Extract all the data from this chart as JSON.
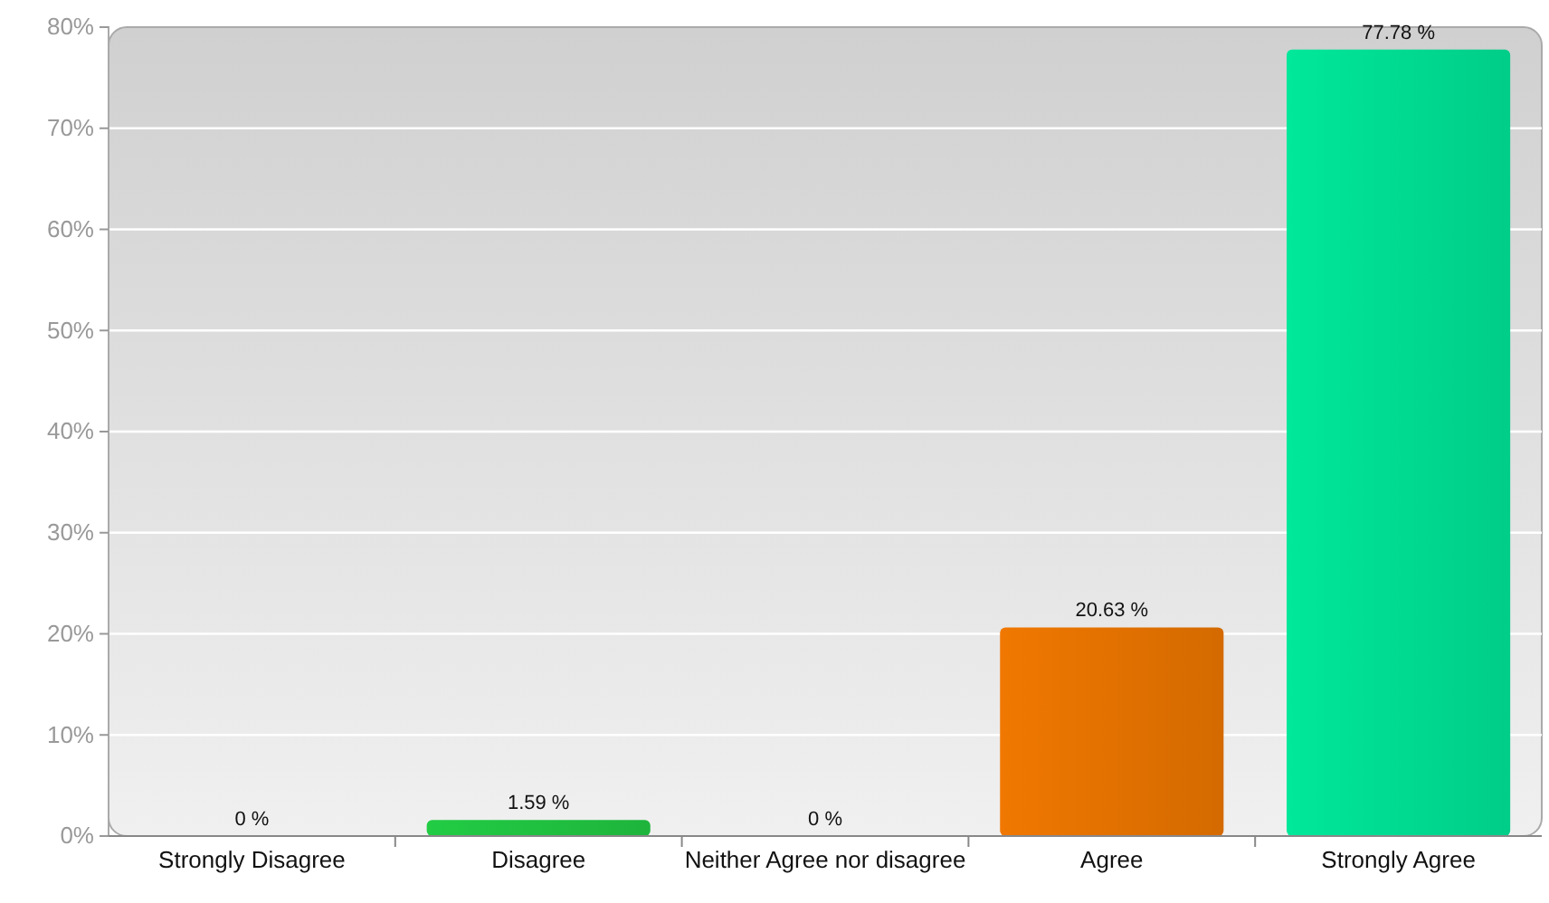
{
  "chart_data": {
    "type": "bar",
    "categories": [
      "Strongly Disagree",
      "Disagree",
      "Neither Agree nor disagree",
      "Agree",
      "Strongly Agree"
    ],
    "values": [
      0,
      1.59,
      0,
      20.63,
      77.78
    ],
    "colors": [
      "#cc3333",
      "#22cc44",
      "#ffcc00",
      "#f07800",
      "#00e89a"
    ],
    "value_labels": [
      "0 %",
      "1.59 %",
      "0 %",
      "20.63 %",
      "77.78 %"
    ],
    "ylim": [
      0,
      80
    ],
    "yticks": [
      {
        "value": 0,
        "label": "0%"
      },
      {
        "value": 10,
        "label": "10%"
      },
      {
        "value": 20,
        "label": "20%"
      },
      {
        "value": 30,
        "label": "30%"
      },
      {
        "value": 40,
        "label": "40%"
      },
      {
        "value": 50,
        "label": "50%"
      },
      {
        "value": 60,
        "label": "60%"
      },
      {
        "value": 70,
        "label": "70%"
      },
      {
        "value": 80,
        "label": "80%"
      }
    ],
    "grid": "y"
  }
}
